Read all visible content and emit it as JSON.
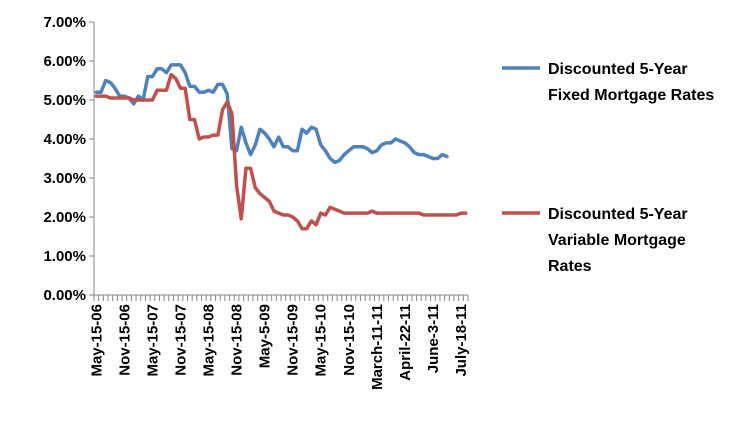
{
  "chart_data": {
    "type": "line",
    "title": "",
    "xlabel": "",
    "ylabel": "",
    "ylim": [
      0,
      7
    ],
    "y_ticks": [
      "0.00%",
      "1.00%",
      "2.00%",
      "3.00%",
      "4.00%",
      "5.00%",
      "6.00%",
      "7.00%"
    ],
    "x_tick_labels": [
      "May-15-06",
      "Nov-15-06",
      "May-15-07",
      "Nov-15-07",
      "May-15-08",
      "Nov-15-08",
      "May-5-09",
      "Nov-15-09",
      "May-15-10",
      "Nov-15-10",
      "March-11-11",
      "April-22-11",
      "June-3-11",
      "July-18-11"
    ],
    "x_tick_label_index": [
      0,
      6,
      12,
      18,
      24,
      30,
      36,
      42,
      48,
      54,
      60,
      66,
      72,
      78
    ],
    "grid": false,
    "legend_position": "right",
    "series": [
      {
        "name": "Discounted 5-Year Fixed Mortgage Rates",
        "color": "#4F81BD",
        "values": [
          5.2,
          5.2,
          5.5,
          5.45,
          5.3,
          5.1,
          5.1,
          5.05,
          4.9,
          5.1,
          5.0,
          5.6,
          5.6,
          5.8,
          5.8,
          5.7,
          5.9,
          5.9,
          5.9,
          5.7,
          5.35,
          5.35,
          5.2,
          5.2,
          5.25,
          5.2,
          5.4,
          5.4,
          5.15,
          3.75,
          3.7,
          4.3,
          3.9,
          3.6,
          3.85,
          4.25,
          4.15,
          4.0,
          3.8,
          4.05,
          3.8,
          3.8,
          3.7,
          3.7,
          4.25,
          4.15,
          4.3,
          4.25,
          3.85,
          3.7,
          3.5,
          3.4,
          3.45,
          3.6,
          3.7,
          3.8,
          3.8,
          3.8,
          3.75,
          3.65,
          3.7,
          3.85,
          3.9,
          3.9,
          4.0,
          3.95,
          3.9,
          3.8,
          3.65,
          3.6,
          3.6,
          3.55,
          3.5,
          3.5,
          3.6,
          3.55
        ]
      },
      {
        "name": "Discounted 5-Year Variable Mortgage Rates",
        "color": "#C0504D",
        "values": [
          5.1,
          5.1,
          5.1,
          5.05,
          5.05,
          5.05,
          5.05,
          5.05,
          5.0,
          5.0,
          5.0,
          5.0,
          5.0,
          5.25,
          5.25,
          5.25,
          5.65,
          5.55,
          5.3,
          5.3,
          4.5,
          4.5,
          4.0,
          4.05,
          4.05,
          4.1,
          4.1,
          4.75,
          4.95,
          4.65,
          2.8,
          1.95,
          3.25,
          3.25,
          2.75,
          2.6,
          2.5,
          2.4,
          2.15,
          2.1,
          2.05,
          2.05,
          2.0,
          1.9,
          1.7,
          1.7,
          1.9,
          1.8,
          2.1,
          2.05,
          2.25,
          2.2,
          2.15,
          2.1,
          2.1,
          2.1,
          2.1,
          2.1,
          2.1,
          2.15,
          2.1,
          2.1,
          2.1,
          2.1,
          2.1,
          2.1,
          2.1,
          2.1,
          2.1,
          2.1,
          2.05,
          2.05,
          2.05,
          2.05,
          2.05,
          2.05,
          2.05,
          2.05,
          2.1,
          2.1
        ]
      }
    ]
  }
}
